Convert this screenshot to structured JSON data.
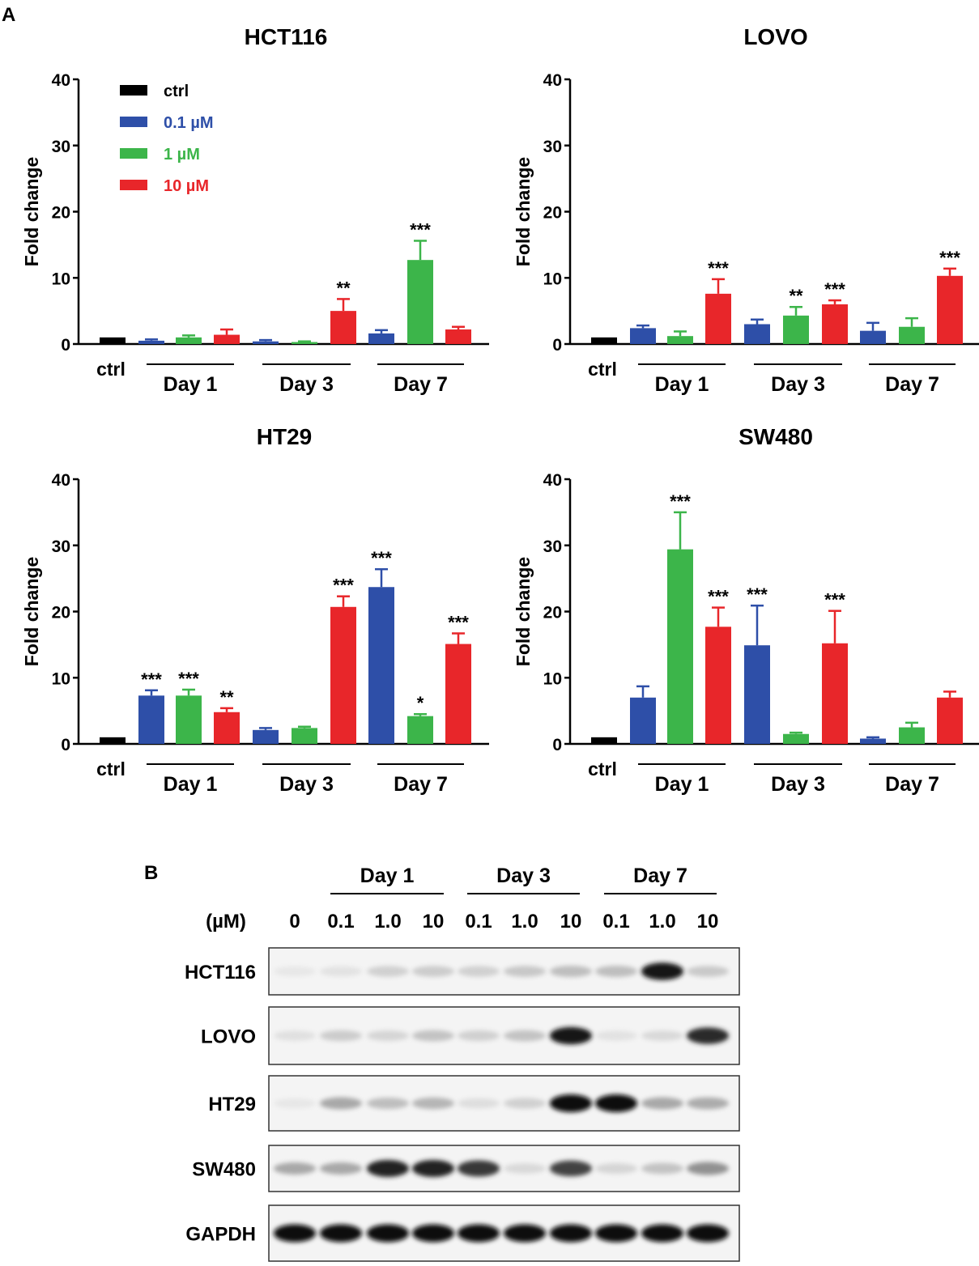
{
  "panel_labels": {
    "a": "A",
    "b": "B"
  },
  "colors": {
    "ctrl": "#000000",
    "0.1 µM": "#2e4fa8",
    "1 µM": "#3cb54a",
    "10 µM": "#e8262a"
  },
  "chart_data": [
    {
      "type": "bar",
      "title": "HCT116",
      "ylabel": "Fold change",
      "ylim": [
        0,
        40
      ],
      "yticks": [
        0,
        10,
        20,
        30,
        40
      ],
      "group_labels": [
        "ctrl",
        "Day 1",
        "Day 3",
        "Day 7"
      ],
      "legend": [
        {
          "name": "ctrl",
          "color": "#000000"
        },
        {
          "name": "0.1 µM",
          "color": "#2e4fa8"
        },
        {
          "name": "1 µM",
          "color": "#3cb54a"
        },
        {
          "name": "10 µM",
          "color": "#e8262a"
        }
      ],
      "bars": [
        {
          "group": "ctrl",
          "series": "ctrl",
          "value": 1.0,
          "error": 0
        },
        {
          "group": "Day 1",
          "series": "0.1 µM",
          "value": 0.5,
          "error": 0.2
        },
        {
          "group": "Day 1",
          "series": "1 µM",
          "value": 1.0,
          "error": 0.3
        },
        {
          "group": "Day 1",
          "series": "10 µM",
          "value": 1.4,
          "error": 0.8
        },
        {
          "group": "Day 3",
          "series": "0.1 µM",
          "value": 0.4,
          "error": 0.2
        },
        {
          "group": "Day 3",
          "series": "1 µM",
          "value": 0.3,
          "error": 0.1
        },
        {
          "group": "Day 3",
          "series": "10 µM",
          "value": 5.0,
          "error": 1.8,
          "sig": "**"
        },
        {
          "group": "Day 7",
          "series": "0.1 µM",
          "value": 1.6,
          "error": 0.5
        },
        {
          "group": "Day 7",
          "series": "1 µM",
          "value": 12.7,
          "error": 2.9,
          "sig": "***"
        },
        {
          "group": "Day 7",
          "series": "10 µM",
          "value": 2.2,
          "error": 0.4
        }
      ]
    },
    {
      "type": "bar",
      "title": "LOVO",
      "ylabel": "Fold change",
      "ylim": [
        0,
        40
      ],
      "yticks": [
        0,
        10,
        20,
        30,
        40
      ],
      "group_labels": [
        "ctrl",
        "Day 1",
        "Day 3",
        "Day 7"
      ],
      "bars": [
        {
          "group": "ctrl",
          "series": "ctrl",
          "value": 1.0,
          "error": 0
        },
        {
          "group": "Day 1",
          "series": "0.1 µM",
          "value": 2.4,
          "error": 0.4
        },
        {
          "group": "Day 1",
          "series": "1 µM",
          "value": 1.2,
          "error": 0.7
        },
        {
          "group": "Day 1",
          "series": "10 µM",
          "value": 7.6,
          "error": 2.2,
          "sig": "***"
        },
        {
          "group": "Day 3",
          "series": "0.1 µM",
          "value": 3.0,
          "error": 0.7
        },
        {
          "group": "Day 3",
          "series": "1 µM",
          "value": 4.3,
          "error": 1.3,
          "sig": "**"
        },
        {
          "group": "Day 3",
          "series": "10 µM",
          "value": 6.0,
          "error": 0.6,
          "sig": "***"
        },
        {
          "group": "Day 7",
          "series": "0.1 µM",
          "value": 2.0,
          "error": 1.2
        },
        {
          "group": "Day 7",
          "series": "1 µM",
          "value": 2.6,
          "error": 1.3
        },
        {
          "group": "Day 7",
          "series": "10 µM",
          "value": 10.3,
          "error": 1.1,
          "sig": "***"
        }
      ]
    },
    {
      "type": "bar",
      "title": "HT29",
      "ylabel": "Fold change",
      "ylim": [
        0,
        40
      ],
      "yticks": [
        0,
        10,
        20,
        30,
        40
      ],
      "group_labels": [
        "ctrl",
        "Day 1",
        "Day 3",
        "Day 7"
      ],
      "bars": [
        {
          "group": "ctrl",
          "series": "ctrl",
          "value": 1.0,
          "error": 0
        },
        {
          "group": "Day 1",
          "series": "0.1 µM",
          "value": 7.3,
          "error": 0.8,
          "sig": "***"
        },
        {
          "group": "Day 1",
          "series": "1 µM",
          "value": 7.3,
          "error": 0.9,
          "sig": "***"
        },
        {
          "group": "Day 1",
          "series": "10 µM",
          "value": 4.8,
          "error": 0.6,
          "sig": "**"
        },
        {
          "group": "Day 3",
          "series": "0.1 µM",
          "value": 2.1,
          "error": 0.3
        },
        {
          "group": "Day 3",
          "series": "1 µM",
          "value": 2.4,
          "error": 0.2
        },
        {
          "group": "Day 3",
          "series": "10 µM",
          "value": 20.7,
          "error": 1.6,
          "sig": "***"
        },
        {
          "group": "Day 7",
          "series": "0.1 µM",
          "value": 23.7,
          "error": 2.7,
          "sig": "***"
        },
        {
          "group": "Day 7",
          "series": "1 µM",
          "value": 4.2,
          "error": 0.3,
          "sig": "*"
        },
        {
          "group": "Day 7",
          "series": "10 µM",
          "value": 15.1,
          "error": 1.6,
          "sig": "***"
        }
      ]
    },
    {
      "type": "bar",
      "title": "SW480",
      "ylabel": "Fold change",
      "ylim": [
        0,
        40
      ],
      "yticks": [
        0,
        10,
        20,
        30,
        40
      ],
      "group_labels": [
        "ctrl",
        "Day 1",
        "Day 3",
        "Day 7"
      ],
      "bars": [
        {
          "group": "ctrl",
          "series": "ctrl",
          "value": 1.0,
          "error": 0
        },
        {
          "group": "Day 1",
          "series": "0.1 µM",
          "value": 7.0,
          "error": 1.7
        },
        {
          "group": "Day 1",
          "series": "1 µM",
          "value": 29.4,
          "error": 5.6,
          "sig": "***"
        },
        {
          "group": "Day 1",
          "series": "10 µM",
          "value": 17.7,
          "error": 2.9,
          "sig": "***"
        },
        {
          "group": "Day 3",
          "series": "0.1 µM",
          "value": 14.9,
          "error": 6.0,
          "sig": "***"
        },
        {
          "group": "Day 3",
          "series": "1 µM",
          "value": 1.5,
          "error": 0.2
        },
        {
          "group": "Day 3",
          "series": "10 µM",
          "value": 15.2,
          "error": 4.9,
          "sig": "***"
        },
        {
          "group": "Day 7",
          "series": "0.1 µM",
          "value": 0.8,
          "error": 0.2
        },
        {
          "group": "Day 7",
          "series": "1 µM",
          "value": 2.5,
          "error": 0.7
        },
        {
          "group": "Day 7",
          "series": "10 µM",
          "value": 7.0,
          "error": 0.9
        }
      ]
    }
  ],
  "western_blot": {
    "unit_label": "(µM)",
    "day_labels": [
      "Day 1",
      "Day 3",
      "Day 7"
    ],
    "lane_labels": [
      "0",
      "0.1",
      "1.0",
      "10",
      "0.1",
      "1.0",
      "10",
      "0.1",
      "1.0",
      "10"
    ],
    "rows": [
      {
        "label": "HCT116",
        "intensity": [
          0.02,
          0.04,
          0.12,
          0.14,
          0.12,
          0.16,
          0.2,
          0.2,
          0.95,
          0.15
        ]
      },
      {
        "label": "LOVO",
        "intensity": [
          0.05,
          0.14,
          0.1,
          0.18,
          0.12,
          0.18,
          0.95,
          0.04,
          0.08,
          0.85
        ]
      },
      {
        "label": "HT29",
        "intensity": [
          0.02,
          0.3,
          0.2,
          0.24,
          0.06,
          0.12,
          1.0,
          1.0,
          0.3,
          0.28
        ]
      },
      {
        "label": "SW480",
        "intensity": [
          0.3,
          0.3,
          0.9,
          0.9,
          0.8,
          0.08,
          0.75,
          0.1,
          0.18,
          0.4
        ]
      },
      {
        "label": "GAPDH",
        "intensity": [
          1.0,
          1.0,
          1.0,
          1.0,
          1.0,
          1.0,
          1.0,
          1.0,
          1.0,
          1.0
        ]
      }
    ]
  }
}
